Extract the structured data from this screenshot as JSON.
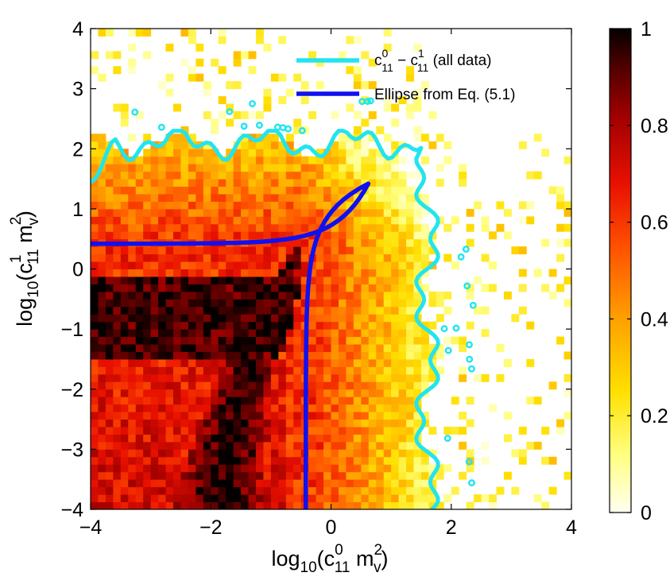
{
  "chart_data": {
    "type": "heatmap",
    "title": "",
    "xlabel": {
      "base": "log",
      "base_sub": "10",
      "open": "(c",
      "c_sup": "0",
      "c_sub": "11",
      "mid": " m",
      "m_sup": "2",
      "m_sub": "v",
      "close": ")"
    },
    "ylabel": {
      "base": "log",
      "base_sub": "10",
      "open": "(c",
      "c_sup": "1",
      "c_sub": "11",
      "mid": " m",
      "m_sup": "2",
      "m_sub": "v",
      "close": ")"
    },
    "xlim": [
      -4,
      4
    ],
    "ylim": [
      -4,
      4
    ],
    "xticks": [
      -4,
      -2,
      0,
      2,
      4
    ],
    "yticks": [
      -4,
      -3,
      -2,
      -1,
      0,
      1,
      2,
      3,
      4
    ],
    "xtick_labels": [
      "−4",
      "−2",
      "0",
      "2",
      "4"
    ],
    "ytick_labels": [
      "−4",
      "−3",
      "−2",
      "−1",
      "0",
      "1",
      "2",
      "3",
      "4"
    ],
    "colorbar": {
      "range": [
        0,
        1
      ],
      "ticks": [
        0,
        0.2,
        0.4,
        0.6,
        0.8,
        1
      ],
      "tick_labels": [
        "0",
        "0.2",
        "0.4",
        "0.6",
        "0.8",
        "1"
      ],
      "colormap": "hot-reversed"
    },
    "grid": false,
    "legend": {
      "placement": "top-right",
      "entries": [
        {
          "label": {
            "c": "c",
            "sup0": "0",
            "sub0": "11",
            "dash": " − c",
            "sup1": "1",
            "sub1": "11",
            "tail": " (all data)"
          },
          "color": "#22e4ee"
        },
        {
          "label": "Ellipse from Eq. (5.1)",
          "color": "#1010f0"
        }
      ]
    },
    "ellipse_curve": {
      "color": "#1010f0",
      "tip": [
        0.62,
        1.42
      ],
      "upper_branch_asymptote_y": 0.42,
      "lower_branch_asymptote_x": -0.42
    },
    "heatmap_description": {
      "bins": 64,
      "support_right_edge_x": 1.6,
      "support_top_edge_y": 2.1,
      "high_density_bands": [
        {
          "name": "horizontal band",
          "x": [
            -4,
            -0.7
          ],
          "y": [
            -1.45,
            -0.1
          ],
          "value": 0.95
        },
        {
          "name": "diagonal band",
          "y": [
            -4,
            0.35
          ],
          "x_center_at_bottom": -1.85,
          "x_center_at_top": -0.55,
          "value": 0.97
        }
      ]
    }
  }
}
